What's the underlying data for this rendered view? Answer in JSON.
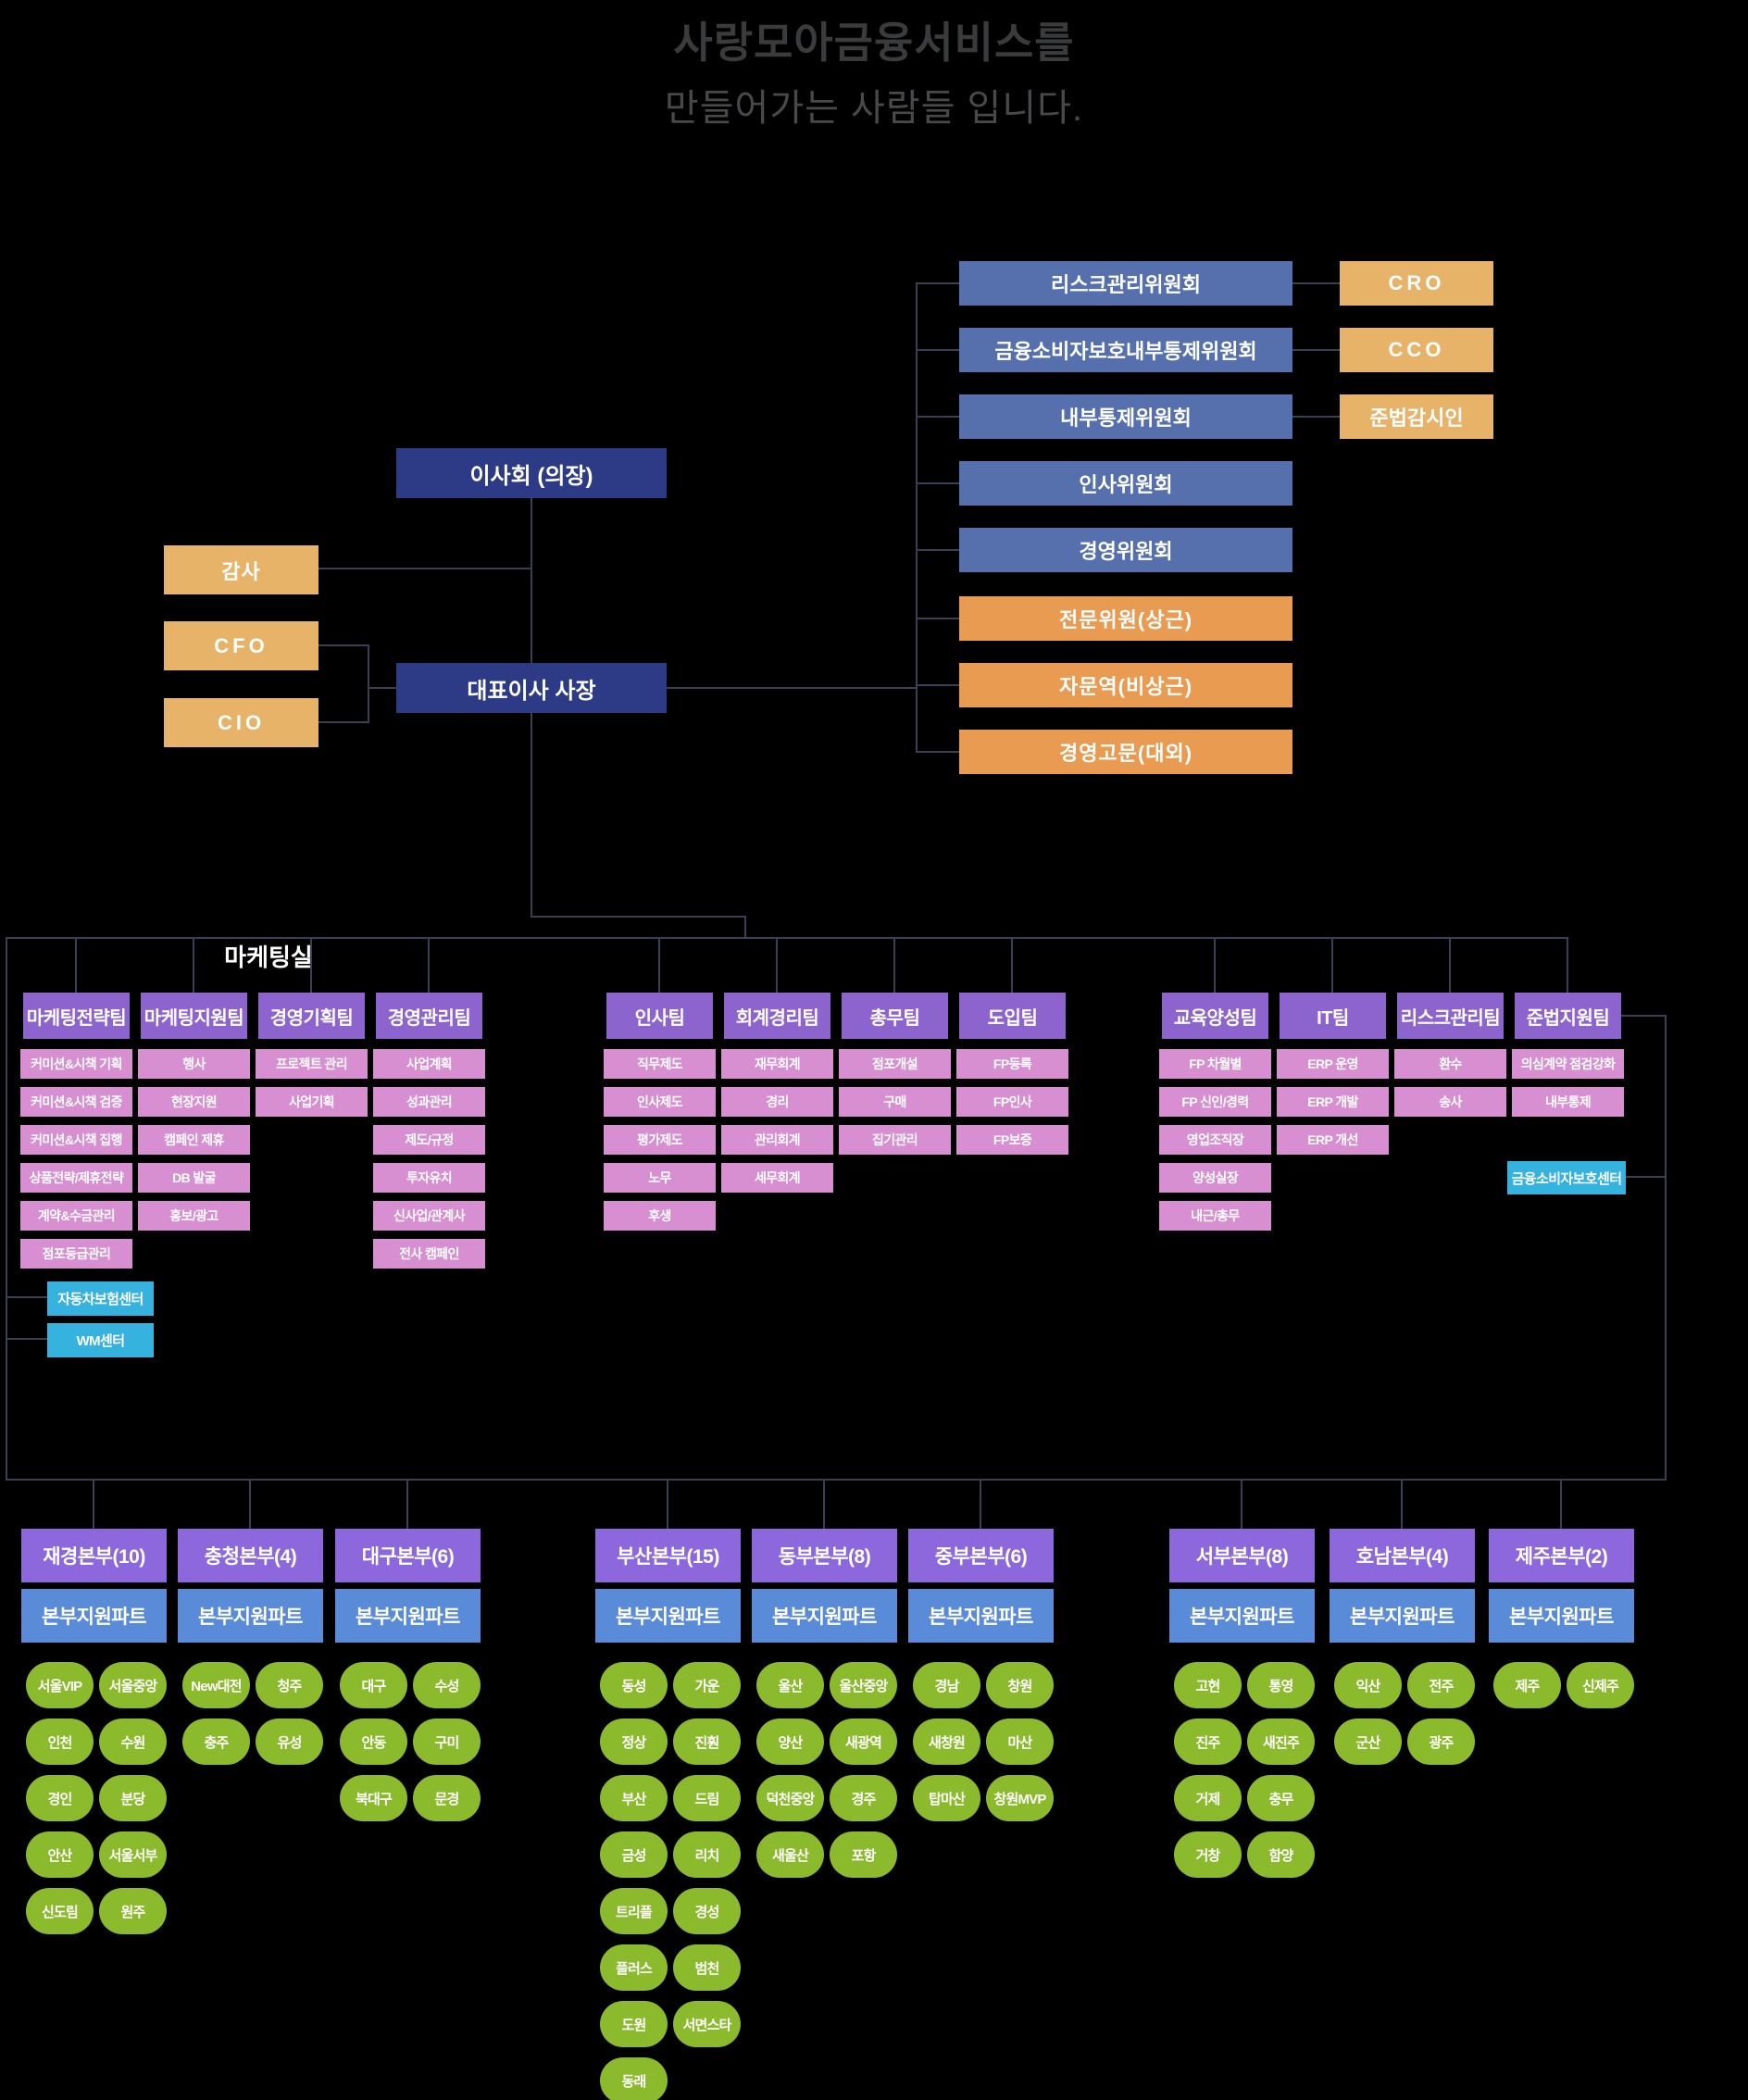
{
  "title": {
    "line1": "사랑모아금융서비스를",
    "line2": "만들어가는 사람들 입니다."
  },
  "top": {
    "board": "이사회 (의장)",
    "ceo": "대표이사 사장",
    "left_officers": [
      "감사",
      "CFO",
      "CIO"
    ],
    "committees": [
      "리스크관리위원회",
      "금융소비자보호내부통제위원회",
      "내부통제위원회",
      "인사위원회",
      "경영위원회"
    ],
    "committee_officers": [
      "CRO",
      "CCO",
      "준법감시인"
    ],
    "advisors": [
      "전문위원(상근)",
      "자문역(비상근)",
      "경영고문(대외)"
    ]
  },
  "marketing": {
    "label": "마케팅실",
    "teams": [
      {
        "name": "마케팅전략팀",
        "items": [
          "커미션&시책 기획",
          "커미션&시책 검증",
          "커미션&시책 집행",
          "상품전략/제휴전략",
          "계약&수금관리",
          "점포등급관리"
        ],
        "centers": [
          "자동차보험센터",
          "WM센터"
        ]
      },
      {
        "name": "마케팅지원팀",
        "items": [
          "행사",
          "현장지원",
          "캠페인 제휴",
          "DB 발굴",
          "홍보/광고"
        ]
      },
      {
        "name": "경영기획팀",
        "items": [
          "프로젝트 관리",
          "사업기획"
        ]
      },
      {
        "name": "경영관리팀",
        "items": [
          "사업계획",
          "성과관리",
          "제도/규정",
          "투자유치",
          "신사업/관계사",
          "전사 캠페인"
        ]
      },
      {
        "name": "인사팀",
        "items": [
          "직무제도",
          "인사제도",
          "평가제도",
          "노무",
          "후생"
        ]
      },
      {
        "name": "회계경리팀",
        "items": [
          "재무회계",
          "경리",
          "관리회계",
          "세무회계"
        ]
      },
      {
        "name": "총무팀",
        "items": [
          "점포개설",
          "구매",
          "집기관리"
        ]
      },
      {
        "name": "도입팀",
        "items": [
          "FP등록",
          "FP인사",
          "FP보증"
        ]
      },
      {
        "name": "교육양성팀",
        "items": [
          "FP 차월별",
          "FP 신인/경력",
          "영업조직장",
          "양성실장",
          "내근/총무"
        ]
      },
      {
        "name": "IT팀",
        "items": [
          "ERP 운영",
          "ERP 개발",
          "ERP 개선"
        ]
      },
      {
        "name": "리스크관리팀",
        "items": [
          "환수",
          "송사"
        ]
      },
      {
        "name": "준법지원팀",
        "items": [
          "의심계약 점검강화",
          "내부통제"
        ],
        "center": "금융소비자보호센터"
      }
    ]
  },
  "regions": [
    {
      "name": "재경본부(10)",
      "support": "본부지원파트",
      "branches": [
        "서울VIP",
        "서울중앙",
        "인천",
        "수원",
        "경인",
        "분당",
        "안산",
        "서울서부",
        "신도림",
        "원주"
      ]
    },
    {
      "name": "충청본부(4)",
      "support": "본부지원파트",
      "branches": [
        "New대전",
        "청주",
        "충주",
        "유성"
      ]
    },
    {
      "name": "대구본부(6)",
      "support": "본부지원파트",
      "branches": [
        "대구",
        "수성",
        "안동",
        "구미",
        "북대구",
        "문경"
      ]
    },
    {
      "name": "부산본부(15)",
      "support": "본부지원파트",
      "branches": [
        "동성",
        "가운",
        "정상",
        "진훤",
        "부산",
        "드림",
        "금성",
        "리치",
        "트리플",
        "경성",
        "플러스",
        "범천",
        "도원",
        "서면스타",
        "동래"
      ]
    },
    {
      "name": "동부본부(8)",
      "support": "본부지원파트",
      "branches": [
        "울산",
        "울산중앙",
        "양산",
        "새광역",
        "덕천중앙",
        "경주",
        "새울산",
        "포항"
      ]
    },
    {
      "name": "중부본부(6)",
      "support": "본부지원파트",
      "branches": [
        "경남",
        "창원",
        "새창원",
        "마산",
        "탑마산",
        "창원MVP"
      ]
    },
    {
      "name": "서부본부(8)",
      "support": "본부지원파트",
      "branches": [
        "고현",
        "통영",
        "진주",
        "새진주",
        "거제",
        "충무",
        "거창",
        "함양"
      ]
    },
    {
      "name": "호남본부(4)",
      "support": "본부지원파트",
      "branches": [
        "익산",
        "전주",
        "군산",
        "광주"
      ]
    },
    {
      "name": "제주본부(2)",
      "support": "본부지원파트",
      "branches": [
        "제주",
        "신제주"
      ]
    }
  ],
  "colors": {
    "background": "#000000",
    "line": "#3a4054",
    "navy": "#2d3a85",
    "committee_blue": "#5570ad",
    "officer_orange": "#e7b369",
    "advisor_orange": "#e99b52",
    "team_purple": "#8d63cd",
    "item_pink": "#d78fd2",
    "center_cyan": "#35b2dd",
    "region_purple": "#8d68dd",
    "support_blue": "#5a8bd8",
    "branch_green": "#8cba2d",
    "title_gray": "#3a3b3d"
  }
}
